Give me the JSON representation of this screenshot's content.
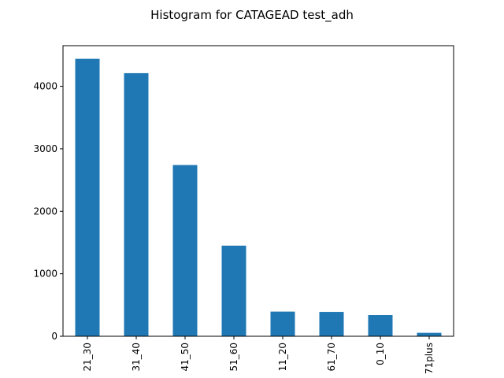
{
  "chart_data": {
    "type": "bar",
    "title": "Histogram for CATAGEAD test_adh",
    "xlabel": "",
    "ylabel": "",
    "categories": [
      "21_30",
      "31_40",
      "41_50",
      "51_60",
      "11_20",
      "61_70",
      "0_10",
      "71plus"
    ],
    "values": [
      4440,
      4210,
      2740,
      1450,
      395,
      390,
      340,
      55
    ],
    "ylim": [
      0,
      4650
    ],
    "yticks": [
      0,
      1000,
      2000,
      3000,
      4000
    ],
    "grid": false,
    "legend": "none",
    "bar_color": "#1f77b4"
  }
}
